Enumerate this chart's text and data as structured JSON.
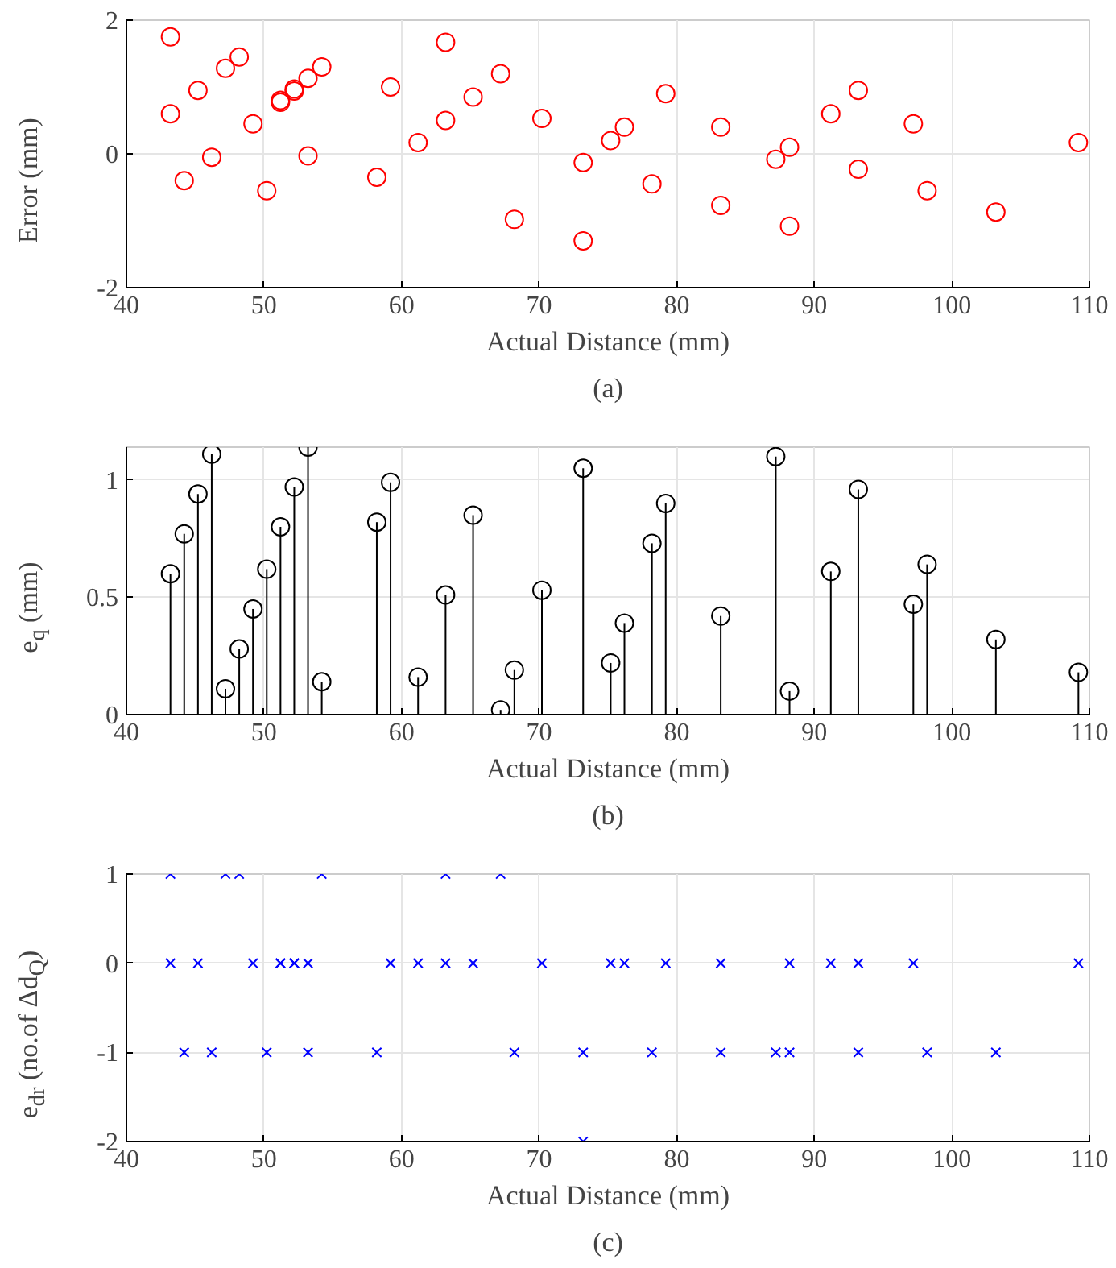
{
  "chart_data": [
    {
      "type": "scatter",
      "xlabel": "Actual Distance (mm)",
      "ylabel": "Error (mm)",
      "annotations": [
        "(a)"
      ],
      "xlim": [
        40,
        110
      ],
      "xticks": [
        40,
        50,
        60,
        70,
        80,
        90,
        100,
        110
      ],
      "ylim": [
        -2,
        2
      ],
      "yticks": [
        -2,
        0,
        2
      ],
      "grid": true,
      "marker": "circle",
      "series": [
        {
          "color": "#ff0000",
          "x": [
            43.2,
            43.2,
            44.2,
            45.2,
            46.2,
            47.2,
            48.2,
            49.2,
            50.2,
            51.2,
            51.2,
            52.2,
            52.2,
            53.2,
            53.2,
            54.2,
            58.2,
            59.2,
            61.2,
            63.2,
            63.2,
            65.2,
            67.2,
            68.2,
            70.2,
            73.2,
            73.2,
            75.2,
            76.2,
            78.2,
            79.2,
            83.2,
            83.2,
            87.2,
            88.2,
            88.2,
            91.2,
            93.2,
            93.2,
            97.2,
            98.2,
            103.2,
            109.2
          ],
          "values": [
            1.75,
            0.6,
            -0.4,
            0.95,
            -0.05,
            1.28,
            1.45,
            0.45,
            -0.55,
            0.8,
            0.77,
            0.97,
            0.94,
            1.13,
            -0.03,
            1.3,
            -0.35,
            1.0,
            0.17,
            1.67,
            0.5,
            0.85,
            1.2,
            -0.98,
            0.53,
            -0.13,
            -1.3,
            0.2,
            0.4,
            -0.45,
            0.9,
            0.4,
            -0.77,
            -0.08,
            0.1,
            -1.08,
            0.6,
            0.95,
            -0.23,
            0.45,
            -0.55,
            -0.87,
            0.17
          ]
        }
      ]
    },
    {
      "type": "lollipop",
      "xlabel": "Actual Distance (mm)",
      "ylabel": "e$_{q}$ (mm)",
      "annotations": [
        "(b)"
      ],
      "xlim": [
        40,
        110
      ],
      "xticks": [
        40,
        50,
        60,
        70,
        80,
        90,
        100,
        110
      ],
      "ylim": [
        0,
        1.14
      ],
      "yticks": [
        0,
        0.5,
        1
      ],
      "grid": true,
      "marker": "circle",
      "series": [
        {
          "color": "#000000",
          "x": [
            43.2,
            44.2,
            45.2,
            46.2,
            47.2,
            48.2,
            49.2,
            50.2,
            51.2,
            52.2,
            53.2,
            54.2,
            58.2,
            59.2,
            61.2,
            63.2,
            65.2,
            67.2,
            68.2,
            70.2,
            73.2,
            75.2,
            76.2,
            78.2,
            79.2,
            83.2,
            87.2,
            88.2,
            91.2,
            93.2,
            97.2,
            98.2,
            103.2,
            109.2
          ],
          "values": [
            0.6,
            0.77,
            0.94,
            1.11,
            0.11,
            0.28,
            0.45,
            0.62,
            0.8,
            0.97,
            1.14,
            0.14,
            0.82,
            0.99,
            0.16,
            0.51,
            0.85,
            0.02,
            0.19,
            0.53,
            1.05,
            0.22,
            0.39,
            0.73,
            0.9,
            0.42,
            1.1,
            0.1,
            0.61,
            0.96,
            0.47,
            0.64,
            0.32,
            0.18
          ]
        }
      ]
    },
    {
      "type": "scatter",
      "xlabel": "Actual Distance (mm)",
      "ylabel": "e$_{dr}$ (no.of Δd$_{Q}$)",
      "annotations": [
        "(c)"
      ],
      "xlim": [
        40,
        110
      ],
      "xticks": [
        40,
        50,
        60,
        70,
        80,
        90,
        100,
        110
      ],
      "ylim": [
        -2,
        1
      ],
      "yticks": [
        -2,
        -1,
        0,
        1
      ],
      "grid": true,
      "marker": "cross",
      "series": [
        {
          "color": "#0000ff",
          "x": [
            43.2,
            43.2,
            44.2,
            45.2,
            46.2,
            47.2,
            48.2,
            49.2,
            50.2,
            51.2,
            51.2,
            52.2,
            52.2,
            53.2,
            53.2,
            54.2,
            58.2,
            59.2,
            61.2,
            63.2,
            63.2,
            65.2,
            67.2,
            68.2,
            70.2,
            73.2,
            73.2,
            75.2,
            76.2,
            78.2,
            79.2,
            83.2,
            83.2,
            87.2,
            88.2,
            88.2,
            91.2,
            93.2,
            93.2,
            97.2,
            98.2,
            103.2,
            109.2
          ],
          "values": [
            1,
            0,
            -1,
            0,
            -1,
            1,
            1,
            0,
            -1,
            0,
            0,
            0,
            0,
            0,
            -1,
            1,
            -1,
            0,
            0,
            1,
            0,
            0,
            1,
            -1,
            0,
            -1,
            -2,
            0,
            0,
            -1,
            0,
            0,
            -1,
            -1,
            0,
            -1,
            0,
            0,
            -1,
            0,
            -1,
            -1,
            0
          ]
        }
      ]
    }
  ]
}
